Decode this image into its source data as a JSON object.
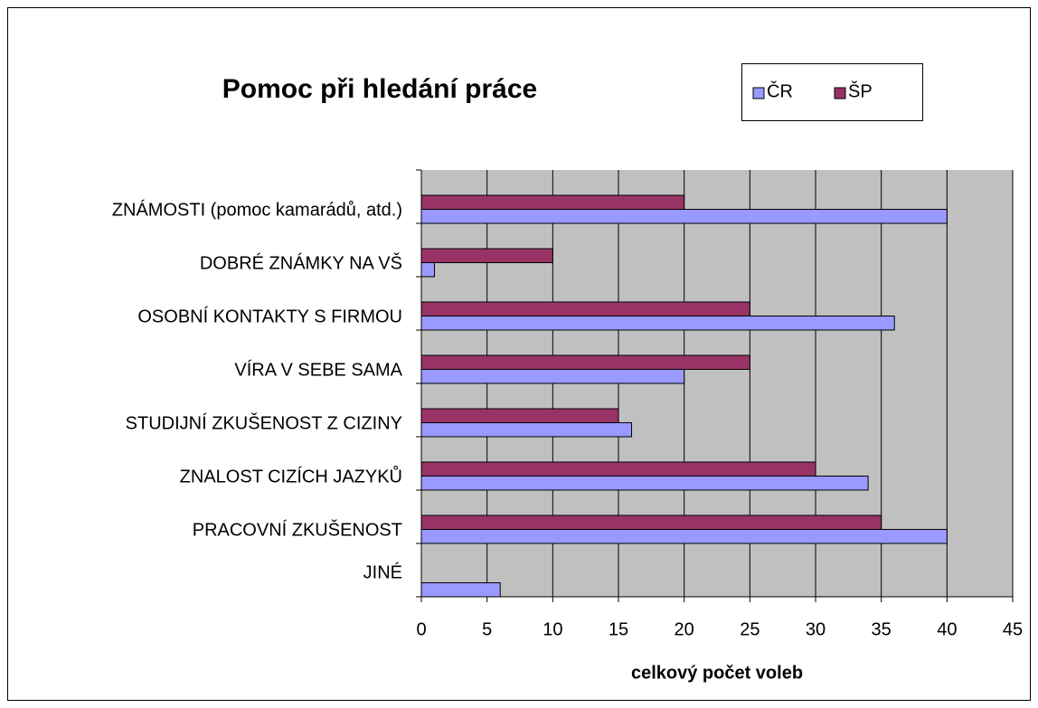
{
  "chart_data": {
    "type": "barh",
    "title": "Pomoc při hledání práce",
    "categories": [
      "ZNÁMOSTI (pomoc kamarádů, atd.)",
      "DOBRÉ ZNÁMKY NA VŠ",
      "OSOBNÍ KONTAKTY S FIRMOU",
      "VÍRA V SEBE SAMA",
      "STUDIJNÍ ZKUŠENOST Z CIZINY",
      "ZNALOST CIZÍCH JAZYKŮ",
      "PRACOVNÍ ZKUŠENOST",
      "JINÉ"
    ],
    "series": [
      {
        "name": "ČR",
        "color": "#9999ff",
        "values": [
          40,
          1,
          36,
          20,
          16,
          34,
          40,
          6
        ]
      },
      {
        "name": "ŠP",
        "color": "#993366",
        "values": [
          20,
          10,
          25,
          25,
          15,
          30,
          35,
          0
        ]
      }
    ],
    "xlabel": "celkový počet voleb",
    "xlim": [
      0,
      45
    ],
    "xticks": [
      0,
      5,
      10,
      15,
      20,
      25,
      30,
      35,
      40,
      45
    ],
    "grid": true,
    "legend": "top-right",
    "plot_background": "#c0c0c0"
  }
}
